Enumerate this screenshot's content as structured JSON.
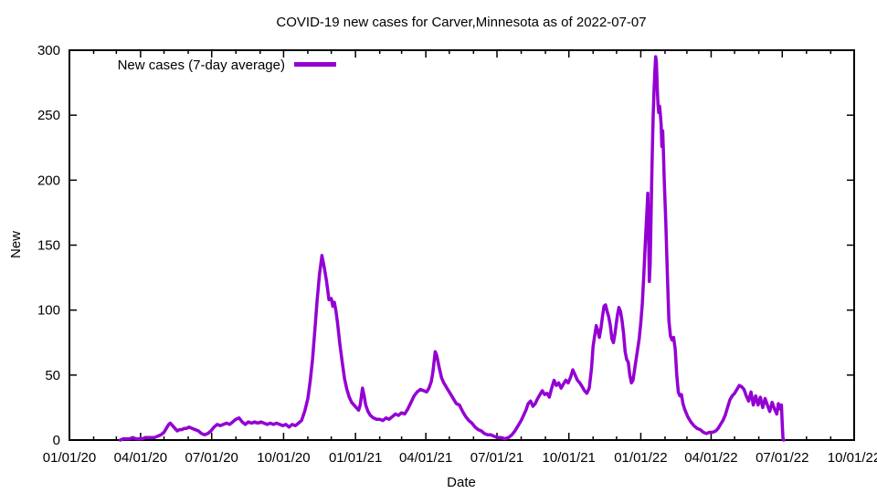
{
  "window": {
    "background_color": "#ffffff",
    "description": "gnuplot-style static line chart image"
  },
  "chart_data": {
    "type": "line",
    "title": "COVID-19 new cases for Carver,Minnesota as of 2022-07-07",
    "xlabel": "Date",
    "ylabel": "New",
    "legend": {
      "label": "New cases (7-day average)",
      "position": "top-left"
    },
    "line_color": "#9400d3",
    "axis_color": "#000000",
    "grid": false,
    "xlim": [
      "2020-01-01",
      "2022-10-01"
    ],
    "ylim": [
      0,
      300
    ],
    "x_tick_labels": [
      "01/01/20",
      "04/01/20",
      "07/01/20",
      "10/01/20",
      "01/01/21",
      "04/01/21",
      "07/01/21",
      "10/01/21",
      "01/01/22",
      "04/01/22",
      "07/01/22",
      "10/01/22"
    ],
    "y_ticks": [
      0,
      50,
      100,
      150,
      200,
      250,
      300
    ],
    "minor_x_ticks": "monthly",
    "series": [
      {
        "name": "New cases (7-day average)",
        "points": [
          [
            "2020-03-06",
            0
          ],
          [
            "2020-03-10",
            1
          ],
          [
            "2020-03-14",
            1
          ],
          [
            "2020-03-18",
            1
          ],
          [
            "2020-03-22",
            2
          ],
          [
            "2020-03-26",
            1
          ],
          [
            "2020-03-30",
            1
          ],
          [
            "2020-04-03",
            1
          ],
          [
            "2020-04-07",
            2
          ],
          [
            "2020-04-11",
            2
          ],
          [
            "2020-04-15",
            2
          ],
          [
            "2020-04-19",
            2
          ],
          [
            "2020-04-23",
            3
          ],
          [
            "2020-04-27",
            4
          ],
          [
            "2020-05-01",
            6
          ],
          [
            "2020-05-04",
            9
          ],
          [
            "2020-05-07",
            12
          ],
          [
            "2020-05-09",
            13
          ],
          [
            "2020-05-12",
            11
          ],
          [
            "2020-05-15",
            9
          ],
          [
            "2020-05-18",
            7
          ],
          [
            "2020-05-21",
            8
          ],
          [
            "2020-05-24",
            8
          ],
          [
            "2020-05-27",
            9
          ],
          [
            "2020-05-30",
            9
          ],
          [
            "2020-06-02",
            10
          ],
          [
            "2020-06-06",
            9
          ],
          [
            "2020-06-10",
            8
          ],
          [
            "2020-06-14",
            7
          ],
          [
            "2020-06-18",
            5
          ],
          [
            "2020-06-22",
            4
          ],
          [
            "2020-06-26",
            5
          ],
          [
            "2020-06-30",
            7
          ],
          [
            "2020-07-04",
            10
          ],
          [
            "2020-07-08",
            12
          ],
          [
            "2020-07-12",
            11
          ],
          [
            "2020-07-16",
            12
          ],
          [
            "2020-07-20",
            13
          ],
          [
            "2020-07-24",
            12
          ],
          [
            "2020-07-28",
            14
          ],
          [
            "2020-08-01",
            16
          ],
          [
            "2020-08-05",
            17
          ],
          [
            "2020-08-09",
            14
          ],
          [
            "2020-08-13",
            12
          ],
          [
            "2020-08-17",
            14
          ],
          [
            "2020-08-21",
            13
          ],
          [
            "2020-08-25",
            14
          ],
          [
            "2020-08-29",
            13
          ],
          [
            "2020-09-02",
            14
          ],
          [
            "2020-09-06",
            13
          ],
          [
            "2020-09-10",
            12
          ],
          [
            "2020-09-14",
            13
          ],
          [
            "2020-09-18",
            12
          ],
          [
            "2020-09-22",
            13
          ],
          [
            "2020-09-26",
            12
          ],
          [
            "2020-09-30",
            11
          ],
          [
            "2020-10-04",
            12
          ],
          [
            "2020-10-08",
            10
          ],
          [
            "2020-10-12",
            12
          ],
          [
            "2020-10-16",
            11
          ],
          [
            "2020-10-20",
            13
          ],
          [
            "2020-10-24",
            15
          ],
          [
            "2020-10-28",
            22
          ],
          [
            "2020-11-01",
            32
          ],
          [
            "2020-11-04",
            45
          ],
          [
            "2020-11-07",
            62
          ],
          [
            "2020-11-10",
            85
          ],
          [
            "2020-11-13",
            108
          ],
          [
            "2020-11-16",
            128
          ],
          [
            "2020-11-19",
            142
          ],
          [
            "2020-11-22",
            133
          ],
          [
            "2020-11-25",
            122
          ],
          [
            "2020-11-28",
            108
          ],
          [
            "2020-12-01",
            109
          ],
          [
            "2020-12-03",
            103
          ],
          [
            "2020-12-05",
            106
          ],
          [
            "2020-12-07",
            99
          ],
          [
            "2020-12-09",
            90
          ],
          [
            "2020-12-12",
            74
          ],
          [
            "2020-12-15",
            60
          ],
          [
            "2020-12-18",
            47
          ],
          [
            "2020-12-21",
            39
          ],
          [
            "2020-12-24",
            33
          ],
          [
            "2020-12-27",
            29
          ],
          [
            "2020-12-30",
            27
          ],
          [
            "2021-01-02",
            25
          ],
          [
            "2021-01-05",
            23
          ],
          [
            "2021-01-07",
            27
          ],
          [
            "2021-01-09",
            36
          ],
          [
            "2021-01-10",
            40
          ],
          [
            "2021-01-12",
            34
          ],
          [
            "2021-01-14",
            27
          ],
          [
            "2021-01-17",
            22
          ],
          [
            "2021-01-20",
            19
          ],
          [
            "2021-01-24",
            17
          ],
          [
            "2021-01-28",
            16
          ],
          [
            "2021-02-01",
            16
          ],
          [
            "2021-02-05",
            15
          ],
          [
            "2021-02-09",
            17
          ],
          [
            "2021-02-13",
            16
          ],
          [
            "2021-02-17",
            18
          ],
          [
            "2021-02-21",
            20
          ],
          [
            "2021-02-25",
            19
          ],
          [
            "2021-03-01",
            21
          ],
          [
            "2021-03-05",
            20
          ],
          [
            "2021-03-09",
            24
          ],
          [
            "2021-03-13",
            29
          ],
          [
            "2021-03-17",
            34
          ],
          [
            "2021-03-21",
            37
          ],
          [
            "2021-03-25",
            39
          ],
          [
            "2021-03-29",
            38
          ],
          [
            "2021-04-02",
            37
          ],
          [
            "2021-04-05",
            40
          ],
          [
            "2021-04-08",
            45
          ],
          [
            "2021-04-10",
            52
          ],
          [
            "2021-04-12",
            63
          ],
          [
            "2021-04-13",
            68
          ],
          [
            "2021-04-15",
            65
          ],
          [
            "2021-04-18",
            56
          ],
          [
            "2021-04-21",
            48
          ],
          [
            "2021-04-24",
            44
          ],
          [
            "2021-04-28",
            40
          ],
          [
            "2021-05-02",
            36
          ],
          [
            "2021-05-06",
            32
          ],
          [
            "2021-05-10",
            28
          ],
          [
            "2021-05-14",
            27
          ],
          [
            "2021-05-18",
            22
          ],
          [
            "2021-05-22",
            18
          ],
          [
            "2021-05-26",
            15
          ],
          [
            "2021-05-30",
            13
          ],
          [
            "2021-06-03",
            10
          ],
          [
            "2021-06-07",
            8
          ],
          [
            "2021-06-11",
            7
          ],
          [
            "2021-06-15",
            5
          ],
          [
            "2021-06-19",
            4
          ],
          [
            "2021-06-23",
            4
          ],
          [
            "2021-06-27",
            3
          ],
          [
            "2021-07-01",
            2
          ],
          [
            "2021-07-06",
            2
          ],
          [
            "2021-07-11",
            1
          ],
          [
            "2021-07-16",
            2
          ],
          [
            "2021-07-20",
            4
          ],
          [
            "2021-07-24",
            7
          ],
          [
            "2021-07-28",
            11
          ],
          [
            "2021-08-01",
            15
          ],
          [
            "2021-08-04",
            19
          ],
          [
            "2021-08-07",
            23
          ],
          [
            "2021-08-10",
            28
          ],
          [
            "2021-08-13",
            30
          ],
          [
            "2021-08-16",
            26
          ],
          [
            "2021-08-19",
            28
          ],
          [
            "2021-08-22",
            32
          ],
          [
            "2021-08-25",
            35
          ],
          [
            "2021-08-28",
            38
          ],
          [
            "2021-08-31",
            35
          ],
          [
            "2021-09-03",
            36
          ],
          [
            "2021-09-06",
            33
          ],
          [
            "2021-09-09",
            40
          ],
          [
            "2021-09-12",
            46
          ],
          [
            "2021-09-15",
            42
          ],
          [
            "2021-09-18",
            44
          ],
          [
            "2021-09-21",
            40
          ],
          [
            "2021-09-24",
            43
          ],
          [
            "2021-09-27",
            46
          ],
          [
            "2021-09-30",
            44
          ],
          [
            "2021-10-03",
            48
          ],
          [
            "2021-10-06",
            54
          ],
          [
            "2021-10-09",
            50
          ],
          [
            "2021-10-12",
            46
          ],
          [
            "2021-10-15",
            44
          ],
          [
            "2021-10-18",
            41
          ],
          [
            "2021-10-21",
            38
          ],
          [
            "2021-10-24",
            36
          ],
          [
            "2021-10-27",
            40
          ],
          [
            "2021-10-30",
            55
          ],
          [
            "2021-11-01",
            72
          ],
          [
            "2021-11-03",
            80
          ],
          [
            "2021-11-05",
            88
          ],
          [
            "2021-11-07",
            84
          ],
          [
            "2021-11-09",
            79
          ],
          [
            "2021-11-11",
            86
          ],
          [
            "2021-11-13",
            95
          ],
          [
            "2021-11-15",
            103
          ],
          [
            "2021-11-17",
            104
          ],
          [
            "2021-11-19",
            99
          ],
          [
            "2021-11-21",
            95
          ],
          [
            "2021-11-23",
            88
          ],
          [
            "2021-11-25",
            78
          ],
          [
            "2021-11-27",
            75
          ],
          [
            "2021-11-29",
            82
          ],
          [
            "2021-12-02",
            96
          ],
          [
            "2021-12-04",
            102
          ],
          [
            "2021-12-06",
            99
          ],
          [
            "2021-12-08",
            92
          ],
          [
            "2021-12-10",
            82
          ],
          [
            "2021-12-12",
            68
          ],
          [
            "2021-12-14",
            62
          ],
          [
            "2021-12-16",
            60
          ],
          [
            "2021-12-18",
            50
          ],
          [
            "2021-12-20",
            44
          ],
          [
            "2021-12-22",
            46
          ],
          [
            "2021-12-24",
            54
          ],
          [
            "2021-12-26",
            62
          ],
          [
            "2021-12-28",
            70
          ],
          [
            "2021-12-30",
            78
          ],
          [
            "2022-01-01",
            90
          ],
          [
            "2022-01-03",
            105
          ],
          [
            "2022-01-05",
            128
          ],
          [
            "2022-01-07",
            155
          ],
          [
            "2022-01-09",
            178
          ],
          [
            "2022-01-10",
            190
          ],
          [
            "2022-01-11",
            158
          ],
          [
            "2022-01-12",
            122
          ],
          [
            "2022-01-13",
            135
          ],
          [
            "2022-01-14",
            165
          ],
          [
            "2022-01-15",
            200
          ],
          [
            "2022-01-16",
            230
          ],
          [
            "2022-01-17",
            252
          ],
          [
            "2022-01-18",
            270
          ],
          [
            "2022-01-19",
            283
          ],
          [
            "2022-01-20",
            295
          ],
          [
            "2022-01-21",
            291
          ],
          [
            "2022-01-22",
            272
          ],
          [
            "2022-01-23",
            258
          ],
          [
            "2022-01-24",
            252
          ],
          [
            "2022-01-25",
            257
          ],
          [
            "2022-01-26",
            251
          ],
          [
            "2022-01-27",
            243
          ],
          [
            "2022-01-28",
            226
          ],
          [
            "2022-01-29",
            238
          ],
          [
            "2022-01-30",
            222
          ],
          [
            "2022-01-31",
            200
          ],
          [
            "2022-02-02",
            168
          ],
          [
            "2022-02-04",
            128
          ],
          [
            "2022-02-06",
            92
          ],
          [
            "2022-02-08",
            80
          ],
          [
            "2022-02-10",
            77
          ],
          [
            "2022-02-12",
            79
          ],
          [
            "2022-02-14",
            70
          ],
          [
            "2022-02-16",
            50
          ],
          [
            "2022-02-18",
            37
          ],
          [
            "2022-02-20",
            34
          ],
          [
            "2022-02-22",
            35
          ],
          [
            "2022-02-24",
            28
          ],
          [
            "2022-02-26",
            24
          ],
          [
            "2022-03-02",
            18
          ],
          [
            "2022-03-06",
            14
          ],
          [
            "2022-03-10",
            11
          ],
          [
            "2022-03-14",
            9
          ],
          [
            "2022-03-18",
            8
          ],
          [
            "2022-03-22",
            6
          ],
          [
            "2022-03-26",
            5
          ],
          [
            "2022-03-30",
            6
          ],
          [
            "2022-04-03",
            6
          ],
          [
            "2022-04-07",
            7
          ],
          [
            "2022-04-10",
            9
          ],
          [
            "2022-04-13",
            12
          ],
          [
            "2022-04-16",
            15
          ],
          [
            "2022-04-19",
            19
          ],
          [
            "2022-04-22",
            25
          ],
          [
            "2022-04-25",
            31
          ],
          [
            "2022-04-28",
            34
          ],
          [
            "2022-05-01",
            36
          ],
          [
            "2022-05-04",
            39
          ],
          [
            "2022-05-07",
            42
          ],
          [
            "2022-05-10",
            41
          ],
          [
            "2022-05-13",
            39
          ],
          [
            "2022-05-16",
            34
          ],
          [
            "2022-05-19",
            30
          ],
          [
            "2022-05-22",
            37
          ],
          [
            "2022-05-25",
            27
          ],
          [
            "2022-05-28",
            34
          ],
          [
            "2022-05-31",
            27
          ],
          [
            "2022-06-03",
            33
          ],
          [
            "2022-06-06",
            25
          ],
          [
            "2022-06-09",
            32
          ],
          [
            "2022-06-12",
            27
          ],
          [
            "2022-06-15",
            22
          ],
          [
            "2022-06-18",
            29
          ],
          [
            "2022-06-21",
            24
          ],
          [
            "2022-06-24",
            20
          ],
          [
            "2022-06-26",
            28
          ],
          [
            "2022-06-28",
            24
          ],
          [
            "2022-06-30",
            27
          ],
          [
            "2022-07-01",
            12
          ],
          [
            "2022-07-02",
            1
          ],
          [
            "2022-07-03",
            0
          ]
        ]
      }
    ]
  }
}
